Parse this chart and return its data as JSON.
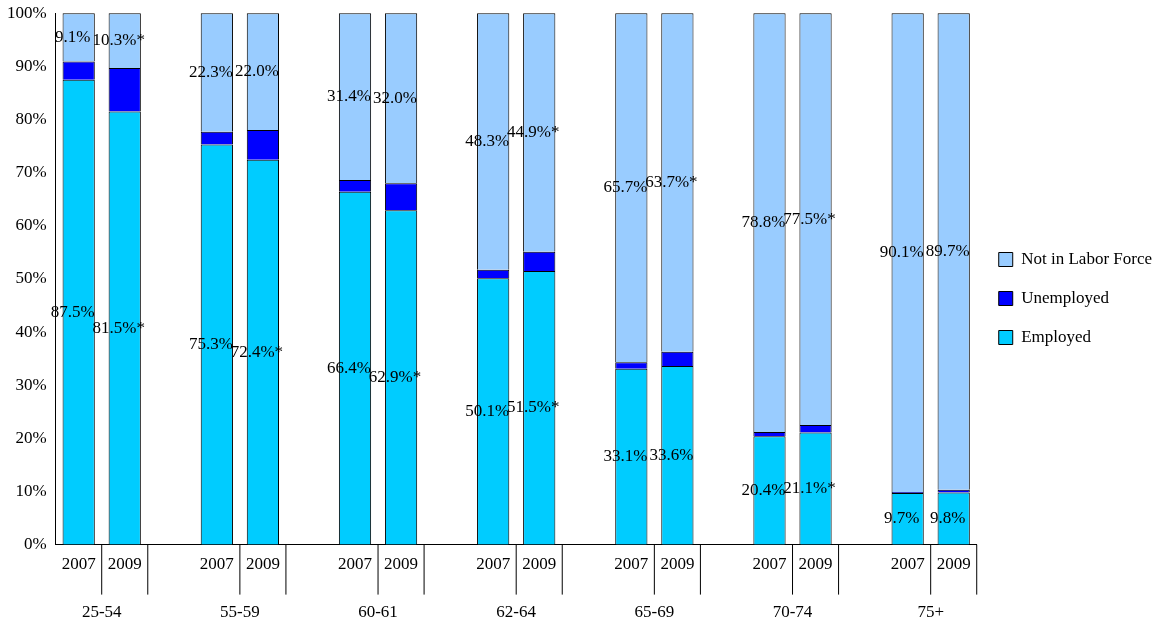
{
  "chart_data": {
    "type": "bar",
    "stacked": true,
    "legend": "right",
    "grid": false,
    "categories": [
      "2007",
      "2009",
      null,
      "2007",
      "2009",
      null,
      "2007",
      "2009",
      null,
      "2007",
      "2009",
      null,
      "2007",
      "2009",
      null,
      "2007",
      "2009",
      null,
      "2007",
      "2009"
    ],
    "ylim": [
      0,
      100
    ],
    "yticks": [
      {
        "value": 0,
        "label": "0%"
      },
      {
        "value": 10,
        "label": "10%"
      },
      {
        "value": 20,
        "label": "20%"
      },
      {
        "value": 30,
        "label": "30%"
      },
      {
        "value": 40,
        "label": "40%"
      },
      {
        "value": 50,
        "label": "50%"
      },
      {
        "value": 60,
        "label": "60%"
      },
      {
        "value": 70,
        "label": "70%"
      },
      {
        "value": 80,
        "label": "80%"
      },
      {
        "value": 90,
        "label": "90%"
      },
      {
        "value": 100,
        "label": "100%"
      }
    ],
    "series": [
      {
        "name": "Employed",
        "color": "#00ccff",
        "values": [
          87.5,
          81.5,
          null,
          75.3,
          72.4,
          null,
          66.4,
          62.9,
          null,
          50.1,
          51.5,
          null,
          33.1,
          33.6,
          null,
          20.4,
          21.1,
          null,
          9.7,
          9.8
        ],
        "value_labels": [
          "87.5%",
          "81.5%*",
          null,
          "75.3%",
          "72.4%*",
          null,
          "66.4%",
          "62.9%*",
          null,
          "50.1%",
          "51.5%*",
          null,
          "33.1%",
          "33.6%",
          null,
          "20.4%",
          "21.1%*",
          null,
          "9.7%",
          "9.8%"
        ]
      },
      {
        "name": "Unemployed",
        "color": "#0000ff",
        "values": [
          3.4,
          8.2,
          null,
          2.4,
          5.6,
          null,
          2.2,
          5.1,
          null,
          1.6,
          3.6,
          null,
          1.2,
          2.7,
          null,
          0.8,
          1.4,
          null,
          0.2,
          0.5
        ]
      },
      {
        "name": "Not in Labor Force",
        "color": "#99ccff",
        "values": [
          9.1,
          10.3,
          null,
          22.3,
          22.0,
          null,
          31.4,
          32.0,
          null,
          48.3,
          44.9,
          null,
          65.7,
          63.7,
          null,
          78.8,
          77.5,
          null,
          90.1,
          89.7
        ],
        "value_labels": [
          "9.1%",
          "10.3%*",
          null,
          "22.3%",
          "22.0%",
          null,
          "31.4%",
          "32.0%",
          null,
          "48.3%",
          "44.9%*",
          null,
          "65.7%",
          "63.7%*",
          null,
          "78.8%",
          "77.5%*",
          null,
          "90.1%",
          "89.7%"
        ]
      }
    ],
    "annotations": [
      "25-54",
      "55-59",
      "60-61",
      "62-64",
      "65-69",
      "70-74",
      "75+"
    ]
  }
}
